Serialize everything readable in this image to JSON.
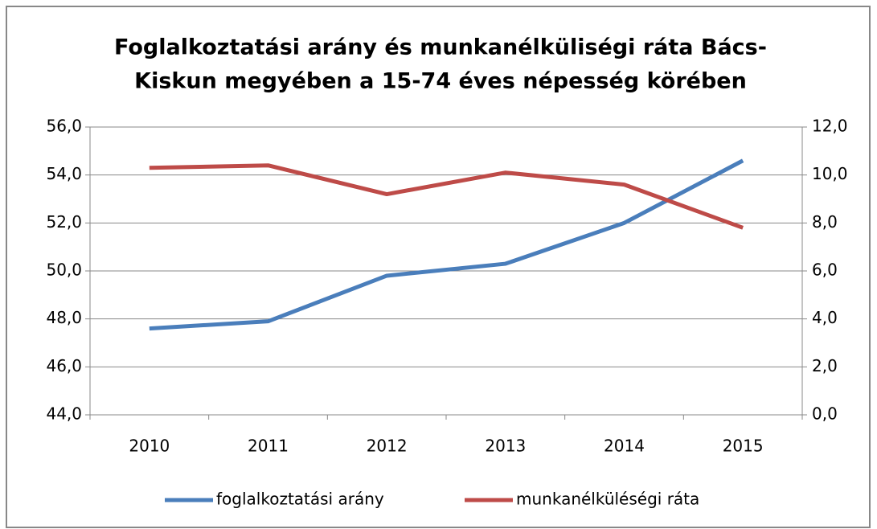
{
  "chart_data": {
    "type": "line",
    "title": [
      "Foglalkoztatási arány és munkanélküliségi ráta Bács-",
      "Kiskun megyében a 15-74 éves népesség körében"
    ],
    "categories": [
      "2010",
      "2011",
      "2012",
      "2013",
      "2014",
      "2015"
    ],
    "series": [
      {
        "name": "foglalkoztatási arány",
        "color": "#4a7ebb",
        "values": [
          47.6,
          47.9,
          49.8,
          50.3,
          52.0,
          54.6
        ]
      },
      {
        "name": "munkanélküléségi ráta",
        "color": "#be4b48",
        "axis": "y2",
        "values": [
          10.3,
          10.4,
          9.2,
          10.1,
          9.6,
          7.8
        ]
      }
    ],
    "ylim": [
      44,
      56
    ],
    "yticks": [
      {
        "value": 44,
        "label": "44,0"
      },
      {
        "value": 46,
        "label": "46,0"
      },
      {
        "value": 48,
        "label": "48,0"
      },
      {
        "value": 50,
        "label": "50,0"
      },
      {
        "value": 52,
        "label": "52,0"
      },
      {
        "value": 54,
        "label": "54,0"
      },
      {
        "value": 56,
        "label": "56,0"
      }
    ],
    "y2lim": [
      0,
      12
    ],
    "y2ticks": [
      {
        "value": 0,
        "label": "0,0"
      },
      {
        "value": 2,
        "label": "2,0"
      },
      {
        "value": 4,
        "label": "4,0"
      },
      {
        "value": 6,
        "label": "6,0"
      },
      {
        "value": 8,
        "label": "8,0"
      },
      {
        "value": 10,
        "label": "10,0"
      },
      {
        "value": 12,
        "label": "12,0"
      }
    ],
    "grid": true,
    "legend": "bottom"
  }
}
